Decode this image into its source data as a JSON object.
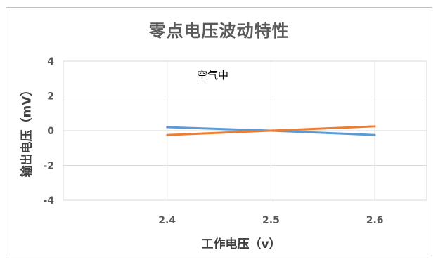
{
  "chart_data": {
    "type": "line",
    "title": "零点电压波动特性",
    "xlabel": "工作电压（v）",
    "ylabel": "输出电压（mV）",
    "annotation": "空气中",
    "x": [
      2.4,
      2.5,
      2.6
    ],
    "x_tick_labels": [
      "2.4",
      "2.5",
      "2.6"
    ],
    "y_ticks": [
      4,
      2,
      0,
      -2,
      -4
    ],
    "y_tick_labels": [
      "4",
      "2",
      "0",
      "-2",
      "-4"
    ],
    "xlim": [
      2.3,
      2.65
    ],
    "ylim": [
      -4,
      4
    ],
    "grid": true,
    "series": [
      {
        "values": [
          0.2,
          0.0,
          -0.25
        ],
        "color": "#5b9bd5"
      },
      {
        "values": [
          -0.25,
          0.0,
          0.25
        ],
        "color": "#ed7d31"
      }
    ]
  }
}
